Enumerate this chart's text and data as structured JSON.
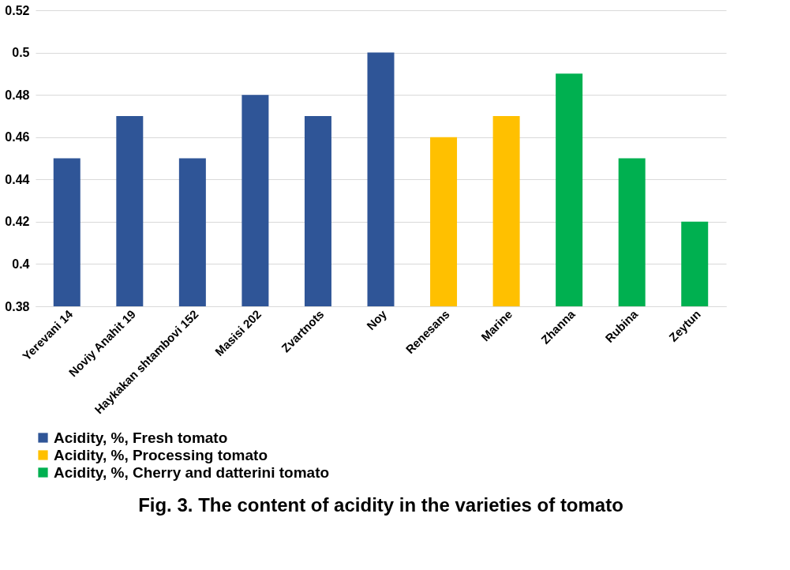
{
  "chart_data": {
    "type": "bar",
    "title": "Fig. 3. The content of acidity in the varieties of tomato",
    "categories": [
      "Yerevani 14",
      "Noviy Anahit 19",
      "Haykakan shtambovi 152",
      "Masisi 202",
      "Zvartnots",
      "Noy",
      "Renesans",
      "Marine",
      "Zhanna",
      "Rubina",
      "Zeytun"
    ],
    "series": [
      {
        "name": "Acidity, %, Fresh tomato",
        "color": "#2f5597",
        "values": [
          0.45,
          0.47,
          0.45,
          0.48,
          0.47,
          0.5,
          null,
          null,
          null,
          null,
          null
        ]
      },
      {
        "name": "Acidity, %, Processing tomato",
        "color": "#ffc000",
        "values": [
          null,
          null,
          null,
          null,
          null,
          null,
          0.46,
          0.47,
          null,
          null,
          null
        ]
      },
      {
        "name": "Acidity, %, Cherry and datterini tomato",
        "color": "#00b050",
        "values": [
          null,
          null,
          null,
          null,
          null,
          null,
          null,
          null,
          0.49,
          0.45,
          0.42
        ]
      }
    ],
    "ylim": [
      0.38,
      0.52
    ],
    "yticks": [
      0.38,
      0.4,
      0.42,
      0.44,
      0.46,
      0.48,
      0.5,
      0.52
    ],
    "grid": "y",
    "legend": "bottom"
  }
}
